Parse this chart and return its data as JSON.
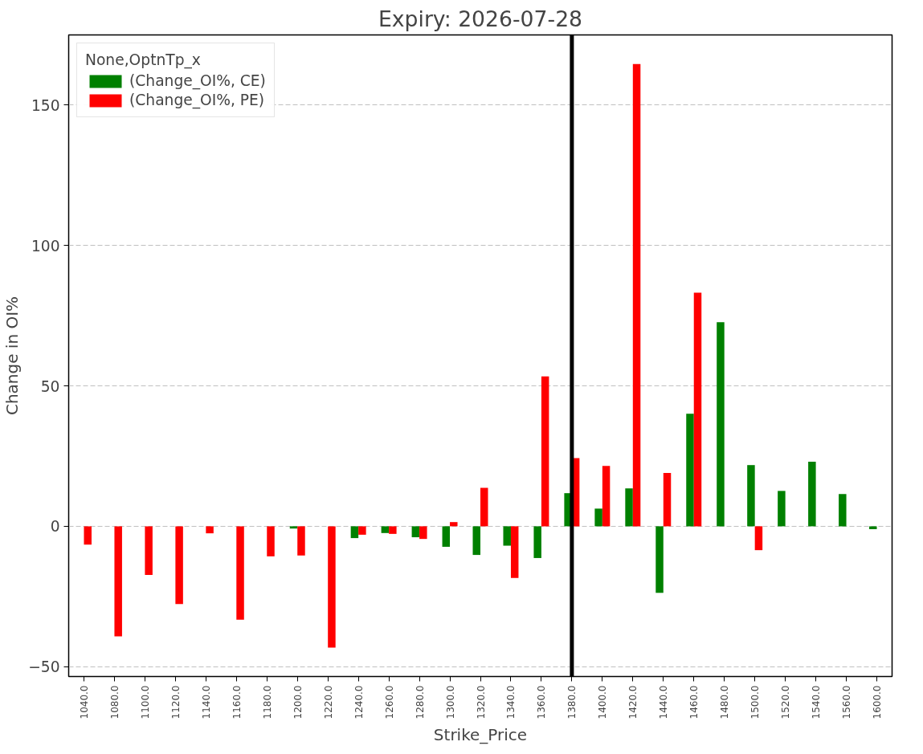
{
  "chart_data": {
    "type": "bar",
    "title": "Expiry: 2026-07-28",
    "xlabel": "Strike_Price",
    "ylabel": "Change in OI%",
    "legend_title": "None,OptnTp_x",
    "categories": [
      "1040.0",
      "1080.0",
      "1100.0",
      "1120.0",
      "1140.0",
      "1160.0",
      "1180.0",
      "1200.0",
      "1220.0",
      "1240.0",
      "1260.0",
      "1280.0",
      "1300.0",
      "1320.0",
      "1340.0",
      "1360.0",
      "1380.0",
      "1400.0",
      "1420.0",
      "1440.0",
      "1460.0",
      "1480.0",
      "1500.0",
      "1520.0",
      "1540.0",
      "1560.0",
      "1600.0"
    ],
    "series": [
      {
        "name": "(Change_OI%, CE)",
        "color": "#008000",
        "values": [
          null,
          null,
          null,
          null,
          null,
          null,
          null,
          -0.8,
          null,
          -4.2,
          -2.4,
          -3.9,
          -7.3,
          -10.2,
          -6.9,
          -11.3,
          11.8,
          6.3,
          13.5,
          -23.7,
          40.1,
          72.7,
          21.8,
          12.6,
          23.0,
          11.5,
          -1.0
        ]
      },
      {
        "name": "(Change_OI%, PE)",
        "color": "#ff0000",
        "values": [
          -6.5,
          -39.2,
          -17.3,
          -27.7,
          -2.5,
          -33.3,
          -10.7,
          -10.4,
          -43.2,
          -3.0,
          -2.7,
          -4.5,
          1.5,
          13.7,
          -18.4,
          53.4,
          24.3,
          21.5,
          164.6,
          19.0,
          83.2,
          null,
          -8.5,
          null,
          null,
          null,
          null
        ]
      }
    ],
    "ylim": [
      -53.5,
      175
    ],
    "yticks": [
      -50,
      0,
      50,
      100,
      150
    ],
    "grid": "y",
    "legend": "top left",
    "ref_lines": [
      {
        "axis": "x",
        "value": "1380.0",
        "color": "#000000"
      }
    ]
  }
}
